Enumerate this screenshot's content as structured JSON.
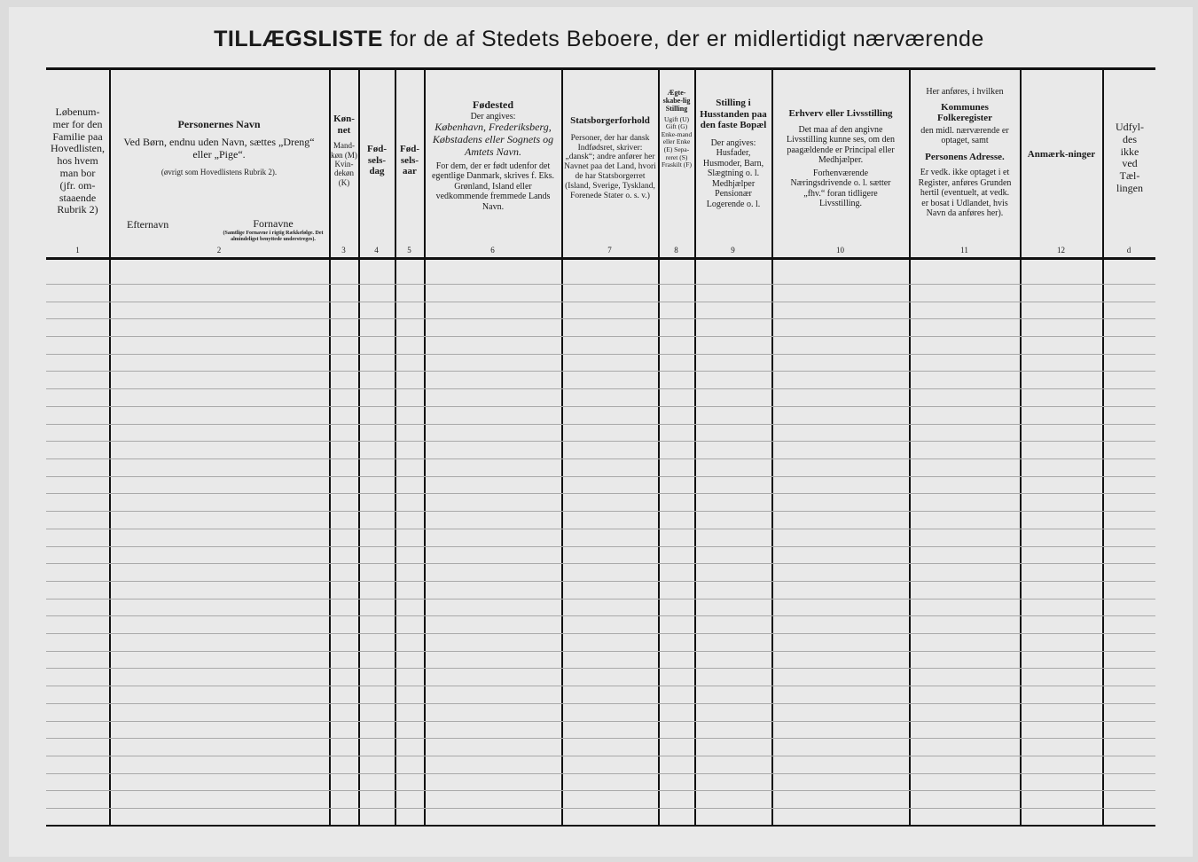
{
  "title": {
    "part1": "TILLÆGSLISTE",
    "part2": " for de af Stedets Beboere, der er midlertidigt nærværende"
  },
  "columns": [
    {
      "num": "1",
      "lines": [
        "Løbenum-",
        "mer for den",
        "Familie paa",
        "Hovedlisten,",
        "hos hvem",
        "man bor",
        "(jfr. om-",
        "staaende",
        "Rubrik 2)"
      ]
    },
    {
      "num": "2",
      "heading": "Personernes Navn",
      "text": "Ved Børn, endnu uden Navn, sættes „Dreng“ eller „Pige“.",
      "note": "(øvrigt som Hovedlistens Rubrik 2).",
      "sub1": "Efternavn",
      "sub2": "Fornavne",
      "sub2note": "(Samtlige Fornavne i rigtig Rækkefølge. Det almindeligst benyttede understreges)."
    },
    {
      "num": "3",
      "heading": "Køn-net",
      "text": "Mand-køn (M) Kvin-dekøn (K)"
    },
    {
      "num": "4",
      "heading": "Fød-sels-dag"
    },
    {
      "num": "5",
      "heading": "Fød-sels-aar"
    },
    {
      "num": "6",
      "heading": "Fødested",
      "sub": "Der angives:",
      "text": "København, Frederiksberg, Købstadens eller Sognets og Amtets Navn.",
      "note": "For dem, der er født udenfor det egentlige Danmark, skrives f. Eks. Grønland, Island eller vedkommende fremmede Lands Navn."
    },
    {
      "num": "7",
      "heading": "Statsborgerforhold",
      "text": "Personer, der har dansk Indfødsret, skriver: „dansk“; andre anfører her Navnet paa det Land, hvori de har Statsborgerret (Island, Sverige, Tyskland, Forenede Stater o. s. v.)"
    },
    {
      "num": "8",
      "heading": "Ægte-skabe-lig Stilling",
      "text": "Ugift (U) Gift (G) Enke-mand eller Enke (E) Sepa-reret (S) Fraskilt (F)"
    },
    {
      "num": "9",
      "heading": "Stilling i Husstanden paa den faste Bopæl",
      "sub": "Der angives:",
      "text": "Husfader, Husmoder, Barn, Slægtning o. l. Medhjælper Pensionær Logerende o. l."
    },
    {
      "num": "10",
      "heading": "Erhverv eller Livsstilling",
      "text": "Det maa af den angivne Livsstilling kunne ses, om den paagældende er Principal eller Medhjælper.",
      "note": "Forhenværende Næringsdrivende o. l. sætter „fhv.“ foran tidligere Livsstilling."
    },
    {
      "num": "11",
      "pre": "Her anføres, i hvilken",
      "heading": "Kommunes Folkeregister",
      "text": "den midl. nærværende er optaget, samt",
      "heading2": "Personens Adresse.",
      "note": "Er vedk. ikke optaget i et Register, anføres Grunden hertil (eventuelt, at vedk. er bosat i Udlandet, hvis Navn da anføres her)."
    },
    {
      "num": "12",
      "heading": "Anmærk-ninger"
    },
    {
      "num": "d",
      "text": "Udfyl-des ikke ved Tæl-lingen"
    }
  ]
}
